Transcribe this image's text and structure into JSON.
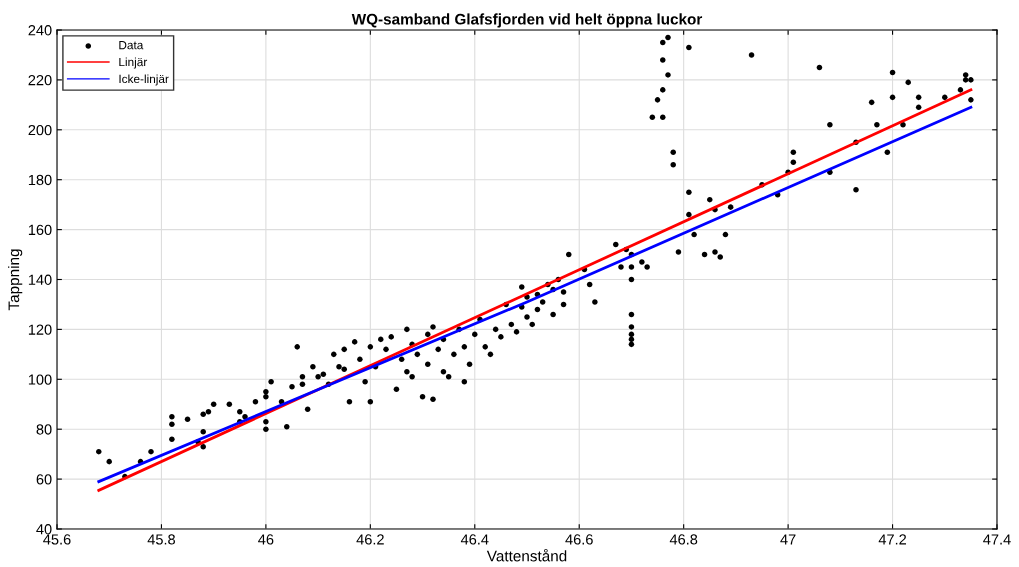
{
  "chart_data": {
    "type": "scatter",
    "title": "WQ-samband Glafsfjorden vid helt öppna luckor",
    "xlabel": "Vattenstånd",
    "ylabel": "Tappning",
    "xlim": [
      45.6,
      47.4
    ],
    "ylim": [
      40,
      240
    ],
    "xticks": [
      45.6,
      45.8,
      46,
      46.2,
      46.4,
      46.6,
      46.8,
      47,
      47.2,
      47.4
    ],
    "yticks": [
      40,
      60,
      80,
      100,
      120,
      140,
      160,
      180,
      200,
      220,
      240
    ],
    "grid": true,
    "legend": "top left",
    "series": [
      {
        "name": "Data",
        "color": "#000000",
        "marker": "circle",
        "x": [
          45.68,
          45.7,
          45.73,
          45.76,
          45.78,
          45.82,
          45.82,
          45.82,
          45.85,
          45.87,
          45.88,
          45.88,
          45.88,
          45.89,
          45.9,
          45.93,
          45.95,
          45.95,
          45.96,
          45.98,
          46.0,
          46.0,
          46.0,
          46.0,
          46.01,
          46.03,
          46.04,
          46.05,
          46.06,
          46.07,
          46.07,
          46.08,
          46.09,
          46.1,
          46.11,
          46.12,
          46.13,
          46.14,
          46.15,
          46.15,
          46.16,
          46.17,
          46.18,
          46.19,
          46.2,
          46.2,
          46.21,
          46.22,
          46.23,
          46.24,
          46.25,
          46.26,
          46.27,
          46.27,
          46.28,
          46.28,
          46.29,
          46.3,
          46.31,
          46.31,
          46.32,
          46.32,
          46.33,
          46.34,
          46.34,
          46.35,
          46.36,
          46.37,
          46.38,
          46.38,
          46.39,
          46.4,
          46.41,
          46.42,
          46.43,
          46.44,
          46.45,
          46.46,
          46.47,
          46.48,
          46.49,
          46.49,
          46.5,
          46.5,
          46.51,
          46.52,
          46.52,
          46.53,
          46.54,
          46.55,
          46.55,
          46.56,
          46.57,
          46.57,
          46.58,
          46.61,
          46.62,
          46.63,
          46.67,
          46.68,
          46.69,
          46.7,
          46.7,
          46.7,
          46.7,
          46.7,
          46.7,
          46.7,
          46.7,
          46.72,
          46.73,
          46.74,
          46.75,
          46.76,
          46.76,
          46.76,
          46.76,
          46.77,
          46.77,
          46.78,
          46.78,
          46.79,
          46.81,
          46.81,
          46.82,
          46.81,
          46.84,
          46.85,
          46.86,
          46.86,
          46.87,
          46.88,
          46.89,
          46.93,
          46.95,
          46.98,
          47.0,
          47.01,
          47.01,
          47.06,
          47.08,
          47.08,
          47.13,
          47.13,
          47.16,
          47.17,
          47.19,
          47.2,
          47.2,
          47.22,
          47.23,
          47.25,
          47.25,
          47.3,
          47.33,
          47.34,
          47.34,
          47.35,
          47.35
        ],
        "values": [
          71,
          67,
          61,
          67,
          71,
          76,
          82,
          85,
          84,
          75,
          73,
          79,
          86,
          87,
          90,
          90,
          83,
          87,
          85,
          91,
          80,
          83,
          93,
          95,
          99,
          91,
          81,
          97,
          113,
          98,
          101,
          88,
          105,
          101,
          102,
          98,
          110,
          105,
          104,
          112,
          91,
          115,
          108,
          99,
          91,
          113,
          105,
          116,
          112,
          117,
          96,
          108,
          103,
          120,
          101,
          114,
          110,
          93,
          106,
          118,
          92,
          121,
          112,
          103,
          116,
          101,
          110,
          120,
          99,
          113,
          106,
          118,
          124,
          113,
          110,
          120,
          117,
          130,
          122,
          119,
          129,
          137,
          125,
          133,
          122,
          128,
          134,
          131,
          138,
          126,
          136,
          140,
          130,
          135,
          150,
          144,
          138,
          131,
          154,
          145,
          152,
          150,
          145,
          140,
          126,
          121,
          118,
          116,
          114,
          147,
          145,
          205,
          212,
          205,
          216,
          228,
          235,
          237,
          222,
          191,
          186,
          151,
          175,
          233,
          158,
          166,
          150,
          172,
          168,
          151,
          149,
          158,
          169,
          230,
          178,
          174,
          183,
          187,
          191,
          225,
          183,
          202,
          195,
          176,
          211,
          202,
          191,
          223,
          213,
          202,
          219,
          213,
          209,
          213,
          216,
          222,
          220,
          220,
          212
        ]
      },
      {
        "name": "Linjär",
        "type": "line",
        "color": "#ff0000",
        "marker": "none",
        "x": [
          45.68,
          47.35
        ],
        "values": [
          55.5,
          216
        ]
      },
      {
        "name": "Icke-linjär",
        "type": "line",
        "color": "#0000ff",
        "marker": "none",
        "x": [
          45.68,
          46.5,
          47.35
        ],
        "values": [
          59,
          131,
          209
        ]
      }
    ]
  }
}
